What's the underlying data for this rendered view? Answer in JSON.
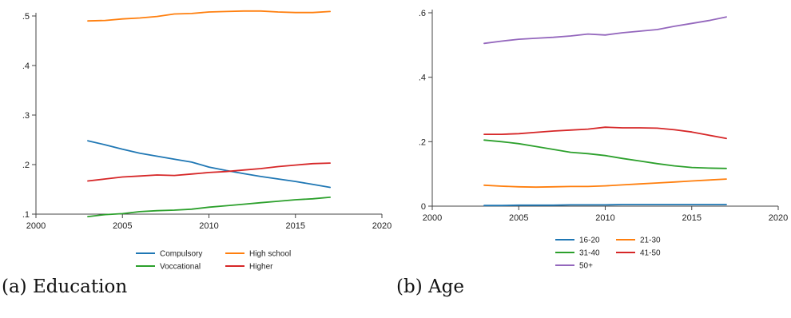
{
  "captions": [
    "(a) Education",
    "(b) Age"
  ],
  "chart_data": [
    {
      "type": "line",
      "title": "",
      "xlabel": "",
      "ylabel": "",
      "x": [
        2003,
        2004,
        2005,
        2006,
        2007,
        2008,
        2009,
        2010,
        2011,
        2012,
        2013,
        2014,
        2015,
        2016,
        2017
      ],
      "xlim": [
        2000,
        2020
      ],
      "ylim": [
        0.1,
        0.5
      ],
      "xticks": [
        2000,
        2005,
        2010,
        2015,
        2020
      ],
      "xtick_labels": [
        "2000",
        "2005",
        "2010",
        "2015",
        "2020"
      ],
      "yticks": [
        0.1,
        0.2,
        0.3,
        0.4,
        0.5
      ],
      "ytick_labels": [
        ".1",
        ".2",
        ".3",
        ".4",
        ".5"
      ],
      "grid": false,
      "legend_position": "bottom",
      "legend_columns": 2,
      "series": [
        {
          "name": "Compulsory",
          "color": "#1f77b4",
          "values": [
            0.248,
            0.24,
            0.231,
            0.223,
            0.217,
            0.211,
            0.205,
            0.195,
            0.188,
            0.182,
            0.176,
            0.171,
            0.166,
            0.16,
            0.154
          ]
        },
        {
          "name": "High school",
          "color": "#ff7f0e",
          "values": [
            0.49,
            0.491,
            0.494,
            0.496,
            0.499,
            0.504,
            0.505,
            0.508,
            0.509,
            0.51,
            0.51,
            0.508,
            0.507,
            0.507,
            0.509
          ]
        },
        {
          "name": "Voccational",
          "color": "#2ca02c",
          "values": [
            0.095,
            0.099,
            0.101,
            0.105,
            0.107,
            0.108,
            0.11,
            0.114,
            0.117,
            0.12,
            0.123,
            0.126,
            0.129,
            0.131,
            0.134
          ]
        },
        {
          "name": "Higher",
          "color": "#d62728",
          "values": [
            0.167,
            0.171,
            0.175,
            0.177,
            0.179,
            0.178,
            0.181,
            0.184,
            0.186,
            0.189,
            0.192,
            0.196,
            0.199,
            0.202,
            0.203
          ]
        }
      ]
    },
    {
      "type": "line",
      "title": "",
      "xlabel": "",
      "ylabel": "",
      "x": [
        2003,
        2004,
        2005,
        2006,
        2007,
        2008,
        2009,
        2010,
        2011,
        2012,
        2013,
        2014,
        2015,
        2016,
        2017
      ],
      "xlim": [
        2000,
        2020
      ],
      "ylim": [
        0,
        0.6
      ],
      "xticks": [
        2000,
        2005,
        2010,
        2015,
        2020
      ],
      "xtick_labels": [
        "2000",
        "2005",
        "2010",
        "2015",
        "2020"
      ],
      "yticks": [
        0,
        0.2,
        0.4,
        0.6
      ],
      "ytick_labels": [
        "0",
        ".2",
        ".4",
        ".6"
      ],
      "grid": false,
      "legend_position": "bottom",
      "legend_columns": 2,
      "series": [
        {
          "name": "16-20",
          "color": "#1f77b4",
          "values": [
            0.002,
            0.002,
            0.003,
            0.003,
            0.003,
            0.004,
            0.004,
            0.004,
            0.005,
            0.005,
            0.005,
            0.005,
            0.005,
            0.005,
            0.005
          ]
        },
        {
          "name": "21-30",
          "color": "#ff7f0e",
          "values": [
            0.065,
            0.062,
            0.06,
            0.059,
            0.06,
            0.061,
            0.061,
            0.063,
            0.066,
            0.069,
            0.072,
            0.075,
            0.078,
            0.081,
            0.084
          ]
        },
        {
          "name": "31-40",
          "color": "#2ca02c",
          "values": [
            0.205,
            0.2,
            0.194,
            0.185,
            0.176,
            0.167,
            0.163,
            0.157,
            0.148,
            0.14,
            0.132,
            0.125,
            0.12,
            0.118,
            0.117
          ]
        },
        {
          "name": "41-50",
          "color": "#d62728",
          "values": [
            0.223,
            0.223,
            0.225,
            0.229,
            0.233,
            0.236,
            0.239,
            0.245,
            0.243,
            0.243,
            0.242,
            0.237,
            0.23,
            0.22,
            0.21
          ]
        },
        {
          "name": "50+",
          "color": "#9467bd",
          "values": [
            0.505,
            0.512,
            0.518,
            0.521,
            0.524,
            0.528,
            0.534,
            0.531,
            0.538,
            0.543,
            0.548,
            0.558,
            0.567,
            0.576,
            0.587
          ]
        }
      ]
    }
  ]
}
